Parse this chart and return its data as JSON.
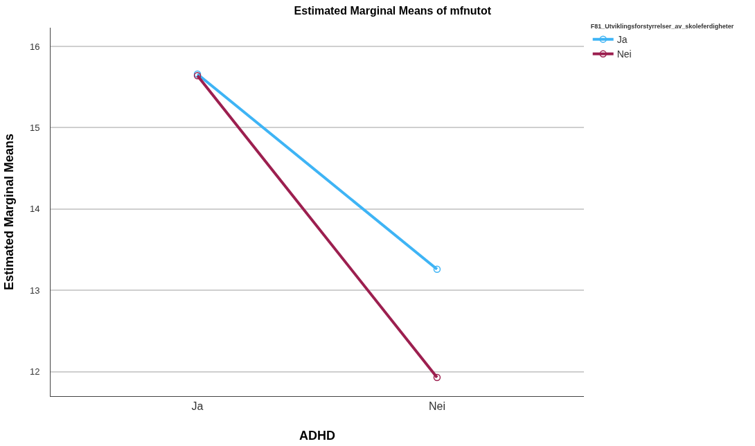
{
  "chart_data": {
    "type": "line",
    "title": "Estimated Marginal Means of mfnutot",
    "xlabel": "ADHD",
    "ylabel": "Estimated Marginal Means",
    "legend_title": "F81_Utviklingsforstyrrelser_av_skoleferdigheter",
    "categories": [
      "Ja",
      "Nei"
    ],
    "series": [
      {
        "name": "Ja",
        "color": "#3eb4f5",
        "values": [
          15.66,
          13.26
        ]
      },
      {
        "name": "Nei",
        "color": "#9c1f4f",
        "values": [
          15.64,
          11.93
        ]
      }
    ],
    "ylim": [
      11.7,
      16.23
    ],
    "yticks": [
      12,
      13,
      14,
      15,
      16
    ],
    "grid": "y",
    "legend": "top right",
    "marker": "circle",
    "line_style": "solid"
  }
}
